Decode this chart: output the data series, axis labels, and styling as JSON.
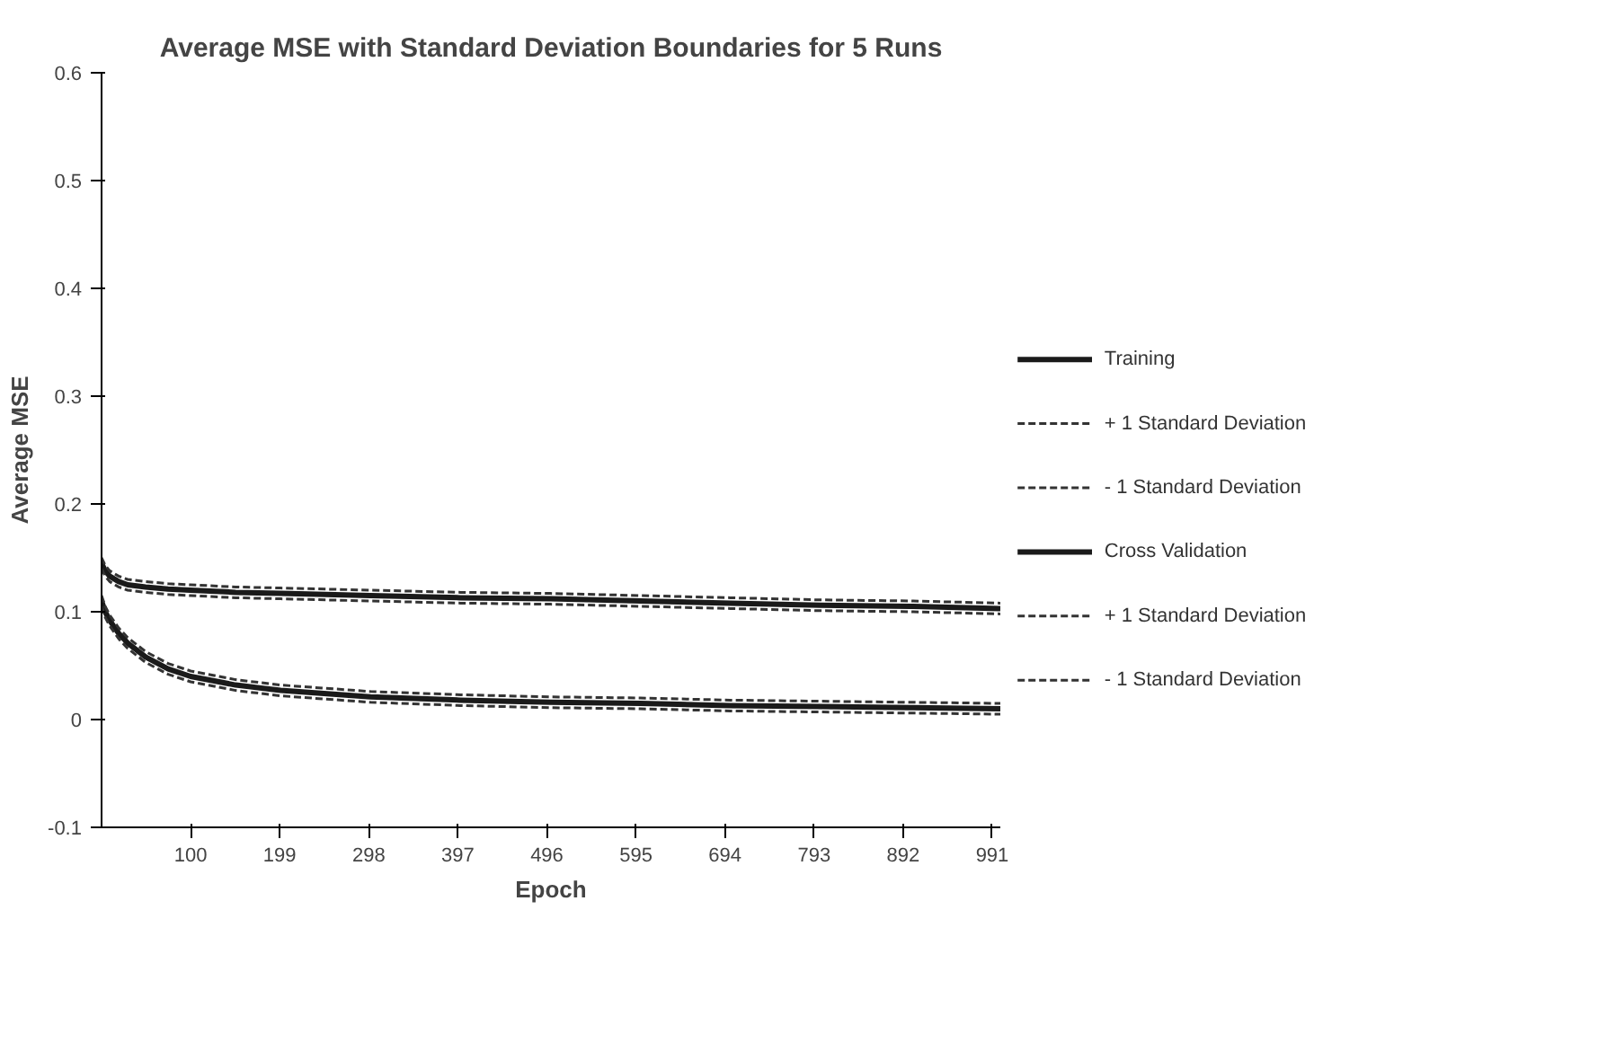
{
  "chart_data": {
    "type": "line",
    "title": "Average MSE with Standard Deviation Boundaries for 5 Runs",
    "xlabel": "Epoch",
    "ylabel": "Average MSE",
    "x": [
      1,
      5,
      10,
      20,
      30,
      50,
      75,
      100,
      150,
      200,
      300,
      400,
      500,
      600,
      700,
      800,
      900,
      1000
    ],
    "series": [
      {
        "name": "Training",
        "color": "#1a1a1a",
        "line_style": "solid",
        "values": [
          0.11,
          0.1,
          0.092,
          0.08,
          0.071,
          0.058,
          0.047,
          0.04,
          0.032,
          0.027,
          0.021,
          0.018,
          0.016,
          0.015,
          0.013,
          0.012,
          0.011,
          0.01
        ]
      },
      {
        "name": "+ 1 Standard Deviation",
        "color": "#333333",
        "line_style": "dashed",
        "values": [
          0.115,
          0.105,
          0.097,
          0.085,
          0.076,
          0.063,
          0.052,
          0.045,
          0.037,
          0.032,
          0.026,
          0.023,
          0.021,
          0.02,
          0.018,
          0.017,
          0.016,
          0.015
        ]
      },
      {
        "name": "- 1 Standard Deviation",
        "color": "#333333",
        "line_style": "dashed",
        "values": [
          0.105,
          0.095,
          0.087,
          0.075,
          0.066,
          0.053,
          0.042,
          0.035,
          0.027,
          0.022,
          0.016,
          0.013,
          0.011,
          0.01,
          0.008,
          0.007,
          0.006,
          0.005
        ]
      },
      {
        "name": "Cross Validation",
        "color": "#1a1a1a",
        "line_style": "solid",
        "values": [
          0.145,
          0.138,
          0.133,
          0.128,
          0.125,
          0.123,
          0.121,
          0.12,
          0.118,
          0.117,
          0.115,
          0.113,
          0.112,
          0.11,
          0.108,
          0.106,
          0.105,
          0.103
        ]
      },
      {
        "name": "+ 1 Standard Deviation",
        "color": "#333333",
        "line_style": "dashed",
        "values": [
          0.15,
          0.143,
          0.138,
          0.133,
          0.13,
          0.128,
          0.126,
          0.125,
          0.123,
          0.122,
          0.12,
          0.118,
          0.117,
          0.115,
          0.113,
          0.111,
          0.11,
          0.108
        ]
      },
      {
        "name": "- 1 Standard Deviation",
        "color": "#333333",
        "line_style": "dashed",
        "values": [
          0.14,
          0.133,
          0.128,
          0.123,
          0.12,
          0.118,
          0.116,
          0.115,
          0.113,
          0.112,
          0.11,
          0.108,
          0.107,
          0.105,
          0.103,
          0.101,
          0.1,
          0.098
        ]
      }
    ],
    "xlim": [
      1,
      1000
    ],
    "xticks": [
      100,
      199,
      298,
      397,
      496,
      595,
      694,
      793,
      892,
      991
    ],
    "ylim": [
      -0.1,
      0.6
    ],
    "yticks": [
      -0.1,
      0,
      0.1,
      0.2,
      0.3,
      0.4,
      0.5,
      0.6
    ],
    "grid": false,
    "legend": "right",
    "marker": "none"
  }
}
